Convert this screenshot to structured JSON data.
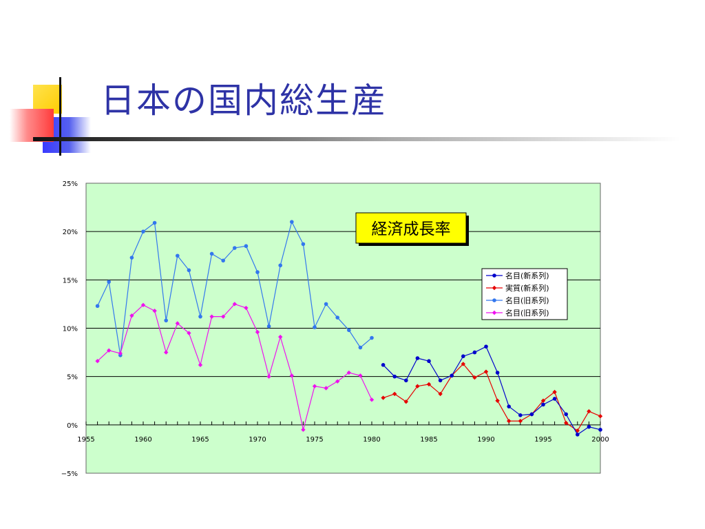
{
  "slide": {
    "title": "日本の国内総生産"
  },
  "colors": {
    "title": "#2e33a6",
    "plot_bg": "#ccffcc",
    "nominal_new": "#0000cc",
    "real_new": "#e60000",
    "nominal_old": "#3377ee",
    "real_old": "#ee11ee"
  },
  "chart_data": {
    "type": "line",
    "title": "経済成長率",
    "xlabel": "",
    "ylabel": "",
    "xlim": [
      1955,
      2000
    ],
    "ylim": [
      -0.05,
      0.25
    ],
    "x_ticks": [
      "1955",
      "1960",
      "1965",
      "1970",
      "1975",
      "1980",
      "1985",
      "1990",
      "1995",
      "2000"
    ],
    "y_ticks": [
      "25%",
      "20%",
      "15%",
      "10%",
      "5%",
      "0%",
      "−5%"
    ],
    "grid": "horizontal",
    "legend_position": "right",
    "series": [
      {
        "name": "名目(新系列)",
        "marker": "circle",
        "color_key": "nominal_new",
        "x": [
          1981,
          1982,
          1983,
          1984,
          1985,
          1986,
          1987,
          1988,
          1989,
          1990,
          1991,
          1992,
          1993,
          1994,
          1995,
          1996,
          1997,
          1998,
          1999,
          2000
        ],
        "y": [
          0.062,
          0.05,
          0.046,
          0.069,
          0.066,
          0.046,
          0.051,
          0.071,
          0.075,
          0.081,
          0.054,
          0.019,
          0.01,
          0.011,
          0.021,
          0.027,
          0.011,
          -0.01,
          -0.002,
          -0.005
        ]
      },
      {
        "name": "実質(新系列)",
        "marker": "diamond",
        "color_key": "real_new",
        "x": [
          1981,
          1982,
          1983,
          1984,
          1985,
          1986,
          1987,
          1988,
          1989,
          1990,
          1991,
          1992,
          1993,
          1994,
          1995,
          1996,
          1997,
          1998,
          1999,
          2000
        ],
        "y": [
          0.028,
          0.032,
          0.024,
          0.04,
          0.042,
          0.032,
          0.051,
          0.063,
          0.049,
          0.055,
          0.025,
          0.004,
          0.004,
          0.011,
          0.025,
          0.034,
          0.002,
          -0.006,
          0.014,
          0.009
        ]
      },
      {
        "name": "名目(旧系列)",
        "marker": "circle",
        "color_key": "nominal_old",
        "x": [
          1956,
          1957,
          1958,
          1959,
          1960,
          1961,
          1962,
          1963,
          1964,
          1965,
          1966,
          1967,
          1968,
          1969,
          1970,
          1971,
          1972,
          1973,
          1974,
          1975,
          1976,
          1977,
          1978,
          1979,
          1980
        ],
        "y": [
          0.123,
          0.148,
          0.072,
          0.173,
          0.2,
          0.209,
          0.108,
          0.175,
          0.16,
          0.112,
          0.177,
          0.17,
          0.183,
          0.185,
          0.158,
          0.102,
          0.165,
          0.21,
          0.187,
          0.101,
          0.125,
          0.111,
          0.098,
          0.08,
          0.09
        ]
      },
      {
        "name": "名目(旧系列)",
        "marker": "diamond",
        "color_key": "real_old",
        "x": [
          1956,
          1957,
          1958,
          1959,
          1960,
          1961,
          1962,
          1963,
          1964,
          1965,
          1966,
          1967,
          1968,
          1969,
          1970,
          1971,
          1972,
          1973,
          1974,
          1975,
          1976,
          1977,
          1978,
          1979,
          1980
        ],
        "y": [
          0.066,
          0.077,
          0.074,
          0.113,
          0.124,
          0.118,
          0.075,
          0.105,
          0.095,
          0.062,
          0.112,
          0.112,
          0.125,
          0.121,
          0.096,
          0.05,
          0.091,
          0.051,
          -0.005,
          0.04,
          0.038,
          0.045,
          0.054,
          0.051,
          0.026
        ]
      }
    ]
  }
}
